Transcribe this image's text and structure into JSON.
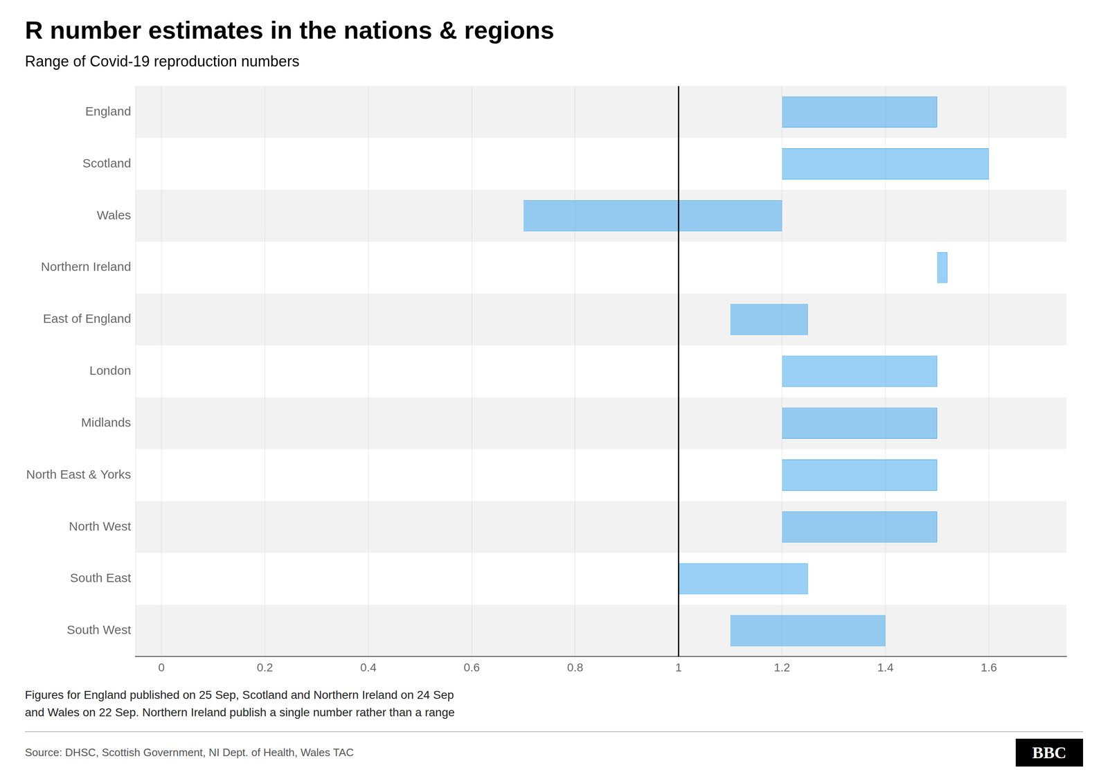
{
  "chart_data": {
    "type": "bar",
    "orientation": "horizontal",
    "title": "R number estimates in the nations & regions",
    "subtitle": "Range of Covid-19 reproduction numbers",
    "categories": [
      "England",
      "Scotland",
      "Wales",
      "Northern Ireland",
      "East of England",
      "London",
      "Midlands",
      "North East & Yorks",
      "North West",
      "South East",
      "South West"
    ],
    "values": [
      [
        1.2,
        1.5
      ],
      [
        1.2,
        1.6
      ],
      [
        0.7,
        1.2
      ],
      [
        1.5,
        1.52
      ],
      [
        1.1,
        1.25
      ],
      [
        1.2,
        1.5
      ],
      [
        1.2,
        1.5
      ],
      [
        1.2,
        1.5
      ],
      [
        1.2,
        1.5
      ],
      [
        1.0,
        1.25
      ],
      [
        1.1,
        1.4
      ]
    ],
    "xlim": [
      -0.05,
      1.75
    ],
    "xticks": [
      0,
      0.2,
      0.4,
      0.6,
      0.8,
      1,
      1.2,
      1.4,
      1.6
    ],
    "reference_line": {
      "value": 1.0,
      "color": "#000000"
    },
    "grid": true,
    "data_labels": false,
    "footnote": "Figures for England published on 25 Sep, Scotland and Northern Ireland on 24 Sep\nand Wales on 22 Sep. Northern Ireland publish a single number rather than a range",
    "source": "Source: DHSC, Scottish Government, NI Dept. of Health, Wales TAC",
    "logo": "BBC"
  }
}
